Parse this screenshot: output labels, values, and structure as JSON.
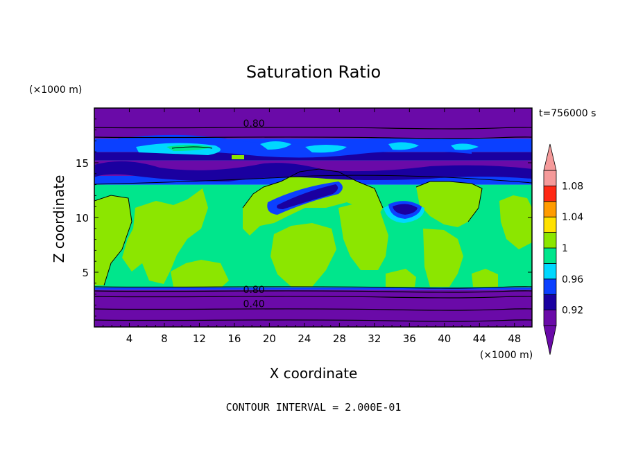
{
  "chart_data": {
    "type": "heatmap",
    "title": "Saturation Ratio",
    "xlabel": "X coordinate",
    "ylabel": "Z coordinate",
    "x_unit": "(×1000 m)",
    "y_unit": "(×1000 m)",
    "time_label": "t=756000 s",
    "footer": "CONTOUR INTERVAL = 2.000E-01",
    "xlim": [
      0,
      50
    ],
    "ylim": [
      0,
      20
    ],
    "x_ticks": [
      4,
      8,
      12,
      16,
      20,
      24,
      28,
      32,
      36,
      40,
      44,
      48
    ],
    "y_ticks": [
      5,
      10,
      15
    ],
    "contour_labels": [
      {
        "text": "0.80",
        "x": 17,
        "y": 18.3
      },
      {
        "text": "0.80",
        "x": 17,
        "y": 3.1
      },
      {
        "text": "0.40",
        "x": 17,
        "y": 1.8
      }
    ],
    "colorbar": {
      "levels": [
        0.9,
        0.92,
        0.94,
        0.96,
        0.98,
        1.0,
        1.02,
        1.04,
        1.06,
        1.08,
        1.1
      ],
      "tick_labels": [
        "0.92",
        "0.96",
        "1",
        "1.04",
        "1.08"
      ],
      "colors": [
        "#6a0aa8",
        "#1a00a0",
        "#0b40ff",
        "#00d8ff",
        "#00e68c",
        "#8ce600",
        "#ffe100",
        "#ff9b00",
        "#ff2814",
        "#f59a9a"
      ],
      "extend": "both"
    },
    "bands": [
      {
        "z": [
          0,
          3.4
        ],
        "color": "#6a0aa8"
      },
      {
        "z": [
          3.4,
          3.6
        ],
        "color": "#0b40ff"
      },
      {
        "z": [
          3.6,
          13.0
        ],
        "color": "#00e68c"
      },
      {
        "z": [
          13.0,
          13.8
        ],
        "color": "#0b40ff"
      },
      {
        "z": [
          13.8,
          15.2
        ],
        "color": "#6a0aa8"
      },
      {
        "z": [
          15.2,
          16.0
        ],
        "color": "#1a00a0"
      },
      {
        "z": [
          16.0,
          17.2
        ],
        "color": "#0b40ff"
      },
      {
        "z": [
          17.2,
          20
        ],
        "color": "#6a0aa8"
      }
    ]
  }
}
